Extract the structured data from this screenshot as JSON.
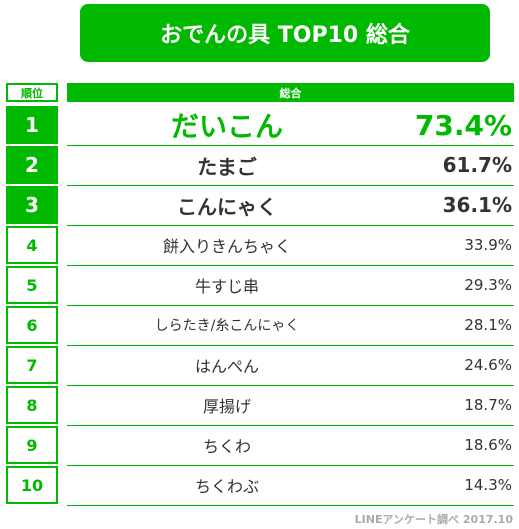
{
  "title": "おでんの具 TOP10 総合",
  "rank_header": "順位",
  "column_header": "総合",
  "source": "LINEアンケート調べ 2017.10",
  "colors": {
    "accent": "#00b900",
    "text": "#333333",
    "muted": "#aaaaaa"
  },
  "chart_data": {
    "type": "table",
    "title": "おでんの具 TOP10 総合",
    "columns": [
      "順位",
      "総合"
    ],
    "rows": [
      {
        "rank": "1",
        "item": "だいこん",
        "percent": "73.4%",
        "value": 73.4
      },
      {
        "rank": "2",
        "item": "たまご",
        "percent": "61.7%",
        "value": 61.7
      },
      {
        "rank": "3",
        "item": "こんにゃく",
        "percent": "36.1%",
        "value": 36.1
      },
      {
        "rank": "4",
        "item": "餅入りきんちゃく",
        "percent": "33.9%",
        "value": 33.9
      },
      {
        "rank": "5",
        "item": "牛すじ串",
        "percent": "29.3%",
        "value": 29.3
      },
      {
        "rank": "6",
        "item": "しらたき/糸こんにゃく",
        "percent": "28.1%",
        "value": 28.1
      },
      {
        "rank": "7",
        "item": "はんぺん",
        "percent": "24.6%",
        "value": 24.6
      },
      {
        "rank": "8",
        "item": "厚揚げ",
        "percent": "18.7%",
        "value": 18.7
      },
      {
        "rank": "9",
        "item": "ちくわ",
        "percent": "18.6%",
        "value": 18.6
      },
      {
        "rank": "10",
        "item": "ちくわぶ",
        "percent": "14.3%",
        "value": 14.3
      }
    ]
  }
}
